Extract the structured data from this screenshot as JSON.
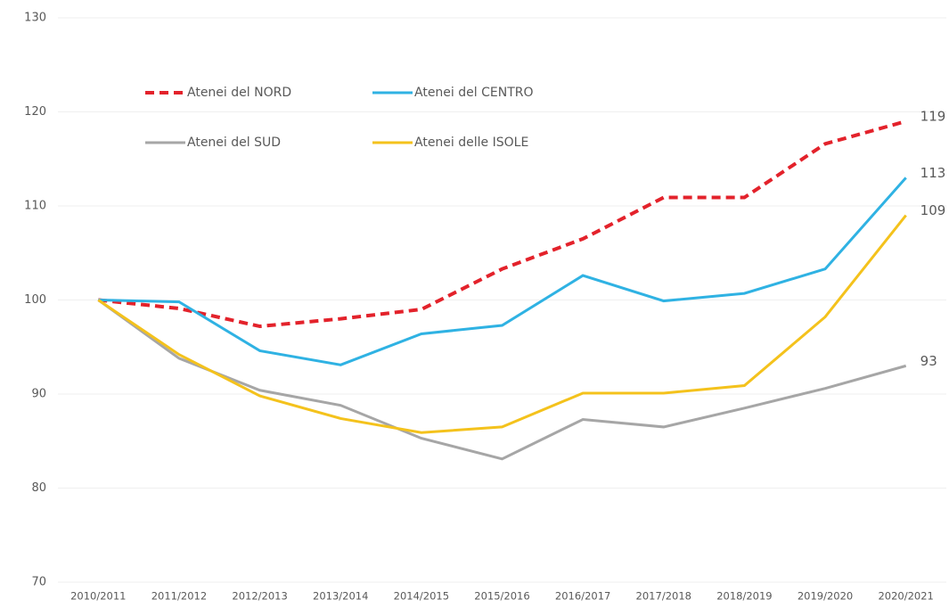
{
  "chart_data": {
    "type": "line",
    "categories": [
      "2010/2011",
      "2011/2012",
      "2012/2013",
      "2013/2014",
      "2014/2015",
      "2015/2016",
      "2016/2017",
      "2017/2018",
      "2018/2019",
      "2019/2020",
      "2020/2021"
    ],
    "series": [
      {
        "name": "Atenei del NORD",
        "color": "#e3222b",
        "dashed": true,
        "values": [
          100,
          99.1,
          97.2,
          98.0,
          99.0,
          103.3,
          106.5,
          110.9,
          110.9,
          116.6,
          119
        ]
      },
      {
        "name": "Atenei del CENTRO",
        "color": "#2fb2e3",
        "dashed": false,
        "values": [
          100,
          99.8,
          94.6,
          93.1,
          96.4,
          97.3,
          102.6,
          99.9,
          100.7,
          103.3,
          113
        ]
      },
      {
        "name": "Atenei del SUD",
        "color": "#a6a6a6",
        "dashed": false,
        "values": [
          100,
          93.8,
          90.4,
          88.8,
          85.3,
          83.1,
          87.3,
          86.5,
          88.5,
          90.6,
          93
        ]
      },
      {
        "name": "Atenei delle ISOLE",
        "color": "#f4c21c",
        "dashed": false,
        "values": [
          100,
          94.2,
          89.8,
          87.4,
          85.9,
          86.5,
          90.1,
          90.1,
          90.9,
          98.2,
          109
        ]
      }
    ],
    "ylim": [
      70,
      130
    ],
    "yticks": [
      70,
      80,
      90,
      100,
      110,
      120,
      130
    ],
    "grid": true,
    "legend": "top-left"
  }
}
